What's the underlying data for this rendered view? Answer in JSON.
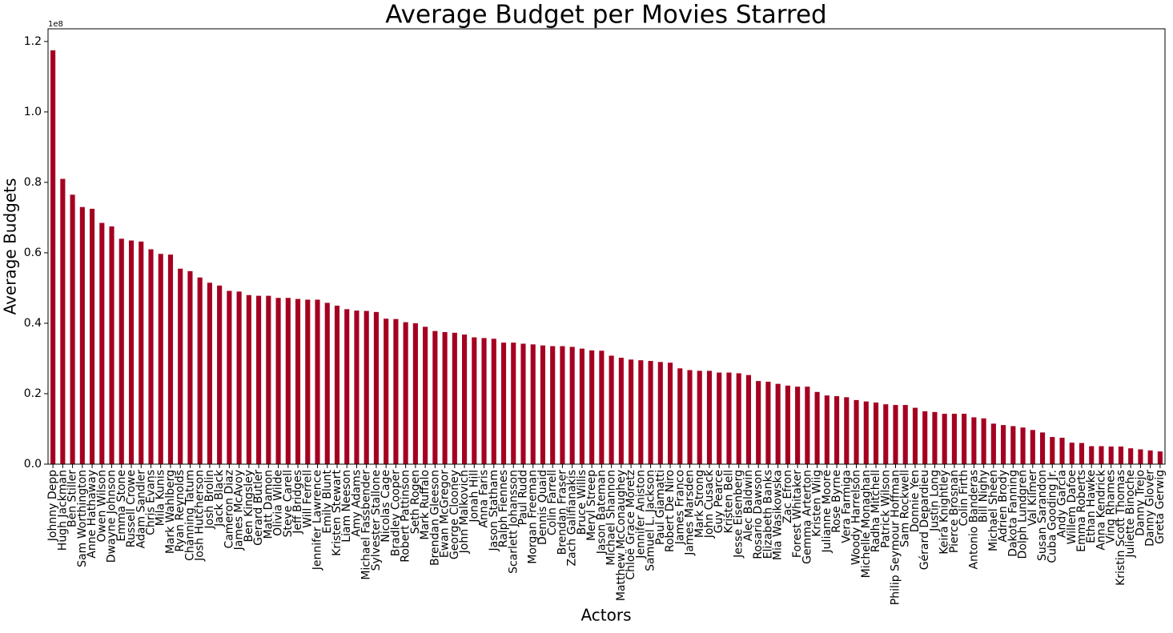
{
  "chart_data": {
    "type": "bar",
    "title": "Average Budget per Movies Starred",
    "x_label": "Actors",
    "y_label": "Average Budgets",
    "y_offset_label": "1e8",
    "color": "#a50021",
    "categories": [
      "Johnny Depp",
      "Hugh Jackman",
      "Ben Stiller",
      "Sam Worthington",
      "Anne Hathaway",
      "Owen Wilson",
      "Dwayne Johnson",
      "Emma Stone",
      "Russell Crowe",
      "Adam Sandler",
      "Chris Evans",
      "Mila Kunis",
      "Mark Wahlberg",
      "Ryan Reynolds",
      "Channing Tatum",
      "Josh Hutcherson",
      "Josh Brolin",
      "Jack Black",
      "Cameron Diaz",
      "James McAvoy",
      "Ben Kingsley",
      "Gerard Butler",
      "Matt Damon",
      "Olivia Wilde",
      "Steve Carell",
      "Jeff Bridges",
      "Will Ferrell",
      "Jennifer Lawrence",
      "Emily Blunt",
      "Kristen Stewart",
      "Liam Neeson",
      "Amy Adams",
      "Michael Fassbender",
      "Sylvester Stallone",
      "Nicolas Cage",
      "Bradley Cooper",
      "Robert Pattinson",
      "Seth Rogen",
      "Mark Ruffalo",
      "Brendan Gleeson",
      "Ewan McGregor",
      "George Clooney",
      "John Malkovich",
      "Jonah Hill",
      "Anna Faris",
      "Jason Statham",
      "Ralph Fiennes",
      "Scarlett Johansson",
      "Paul Rudd",
      "Morgan Freeman",
      "Dennis Quaid",
      "Colin Farrell",
      "Brendan Fraser",
      "Zach Galifianakis",
      "Bruce Willis",
      "Meryl Streep",
      "Jason Bateman",
      "Michael Shannon",
      "Matthew McConaughey",
      "Chloë Grace Moretz",
      "Jennifer Aniston",
      "Samuel L. Jackson",
      "Paul Giamatti",
      "Robert De Niro",
      "James Franco",
      "James Marsden",
      "Mark Strong",
      "John Cusack",
      "Guy Pearce",
      "Kristen Bell",
      "Jesse Eisenberg",
      "Alec Baldwin",
      "Rosario Dawson",
      "Elizabeth Banks",
      "Mia Wasikowska",
      "Zac Efron",
      "Forest Whitaker",
      "Gemma Arterton",
      "Kristen Wiig",
      "Julianne Moore",
      "Rose Byrne",
      "Vera Farmiga",
      "Woody Harrelson",
      "Michelle Monaghan",
      "Radha Mitchell",
      "Patrick Wilson",
      "Philip Seymour Hoffman",
      "Sam Rockwell",
      "Donnie Yen",
      "Gérard Depardieu",
      "Justin Long",
      "Keira Knightley",
      "Pierce Brosnan",
      "Colin Firth",
      "Antonio Banderas",
      "Bill Nighy",
      "Michael Sheen",
      "Adrien Brody",
      "Dakota Fanning",
      "Dolph Lundgren",
      "Val Kilmer",
      "Susan Sarandon",
      "Cuba Gooding Jr.",
      "Andy Garcia",
      "Willem Dafoe",
      "Emma Roberts",
      "Ethan Hawke",
      "Anna Kendrick",
      "Ving Rhames",
      "Kristin Scott Thomas",
      "Juliette Binoche",
      "Danny Trejo",
      "Danny Glover",
      "Greta Gerwig"
    ],
    "values": [
      1.175,
      0.81,
      0.765,
      0.73,
      0.725,
      0.685,
      0.675,
      0.64,
      0.635,
      0.632,
      0.61,
      0.597,
      0.595,
      0.555,
      0.548,
      0.53,
      0.515,
      0.507,
      0.492,
      0.49,
      0.48,
      0.478,
      0.478,
      0.472,
      0.472,
      0.469,
      0.467,
      0.467,
      0.458,
      0.45,
      0.44,
      0.436,
      0.435,
      0.432,
      0.413,
      0.412,
      0.403,
      0.4,
      0.39,
      0.378,
      0.375,
      0.373,
      0.368,
      0.36,
      0.358,
      0.356,
      0.345,
      0.345,
      0.342,
      0.34,
      0.337,
      0.335,
      0.335,
      0.333,
      0.328,
      0.323,
      0.322,
      0.308,
      0.302,
      0.297,
      0.295,
      0.293,
      0.29,
      0.288,
      0.272,
      0.267,
      0.265,
      0.265,
      0.26,
      0.26,
      0.258,
      0.253,
      0.236,
      0.234,
      0.228,
      0.223,
      0.22,
      0.22,
      0.205,
      0.195,
      0.193,
      0.19,
      0.182,
      0.178,
      0.175,
      0.17,
      0.168,
      0.168,
      0.16,
      0.15,
      0.148,
      0.143,
      0.143,
      0.143,
      0.133,
      0.13,
      0.115,
      0.111,
      0.108,
      0.104,
      0.097,
      0.09,
      0.077,
      0.075,
      0.061,
      0.06,
      0.051,
      0.051,
      0.05,
      0.05,
      0.045,
      0.042,
      0.039,
      0.036
    ],
    "ylim": [
      0,
      1.236
    ],
    "yticks": [
      {
        "value": 0,
        "label": "0.0"
      },
      0.2,
      0.4,
      0.6,
      0.8,
      {
        "value": 1,
        "label": "1.0"
      },
      1.2
    ]
  }
}
